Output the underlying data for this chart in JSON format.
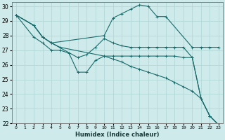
{
  "xlabel": "Humidex (Indice chaleur)",
  "ylabel": "",
  "xlim": [
    -0.5,
    23.5
  ],
  "ylim": [
    22,
    30.3
  ],
  "xticks": [
    0,
    1,
    2,
    3,
    4,
    5,
    6,
    7,
    8,
    9,
    10,
    11,
    12,
    13,
    14,
    15,
    16,
    17,
    18,
    19,
    20,
    21,
    22,
    23
  ],
  "yticks": [
    22,
    23,
    24,
    25,
    26,
    27,
    28,
    29,
    30
  ],
  "background_color": "#ceeaea",
  "grid_color": "#aed4d4",
  "line_color": "#1a6b6b",
  "lines": [
    {
      "x": [
        0,
        2,
        3,
        4,
        5,
        10,
        11,
        12,
        13,
        14,
        15,
        16,
        17,
        18,
        19,
        20,
        21,
        22,
        23
      ],
      "y": [
        29.4,
        28.7,
        27.9,
        27.5,
        27.2,
        26.6,
        26.4,
        26.2,
        25.9,
        25.7,
        25.5,
        25.3,
        25.1,
        24.8,
        24.5,
        24.2,
        23.7,
        22.5,
        21.9
      ]
    },
    {
      "x": [
        0,
        2,
        3,
        4,
        10,
        11,
        12,
        13,
        14,
        15,
        16,
        17,
        20,
        21,
        22,
        23
      ],
      "y": [
        29.4,
        28.7,
        27.9,
        27.5,
        28.0,
        29.2,
        29.5,
        29.8,
        30.1,
        30.0,
        29.3,
        29.3,
        27.2,
        27.2,
        27.2,
        27.2
      ]
    },
    {
      "x": [
        0,
        2,
        3,
        4,
        7,
        8,
        9,
        10,
        11,
        12,
        13,
        14,
        15,
        16,
        17,
        18,
        19,
        20,
        21,
        22,
        23
      ],
      "y": [
        29.4,
        28.7,
        27.9,
        27.5,
        26.5,
        26.7,
        27.2,
        27.8,
        27.5,
        27.3,
        27.2,
        27.2,
        27.2,
        27.2,
        27.2,
        27.2,
        27.2,
        26.5,
        23.7,
        22.5,
        21.9
      ]
    },
    {
      "x": [
        0,
        2,
        3,
        4,
        5,
        6,
        7,
        8,
        9,
        10,
        11,
        12,
        13,
        14,
        15,
        16,
        17,
        18,
        19,
        20,
        21,
        22,
        23
      ],
      "y": [
        29.4,
        27.9,
        27.5,
        27.0,
        27.0,
        26.8,
        25.5,
        25.5,
        26.3,
        26.6,
        26.6,
        26.6,
        26.6,
        26.6,
        26.6,
        26.6,
        26.6,
        26.6,
        26.5,
        26.5,
        23.7,
        22.5,
        21.9
      ]
    }
  ]
}
